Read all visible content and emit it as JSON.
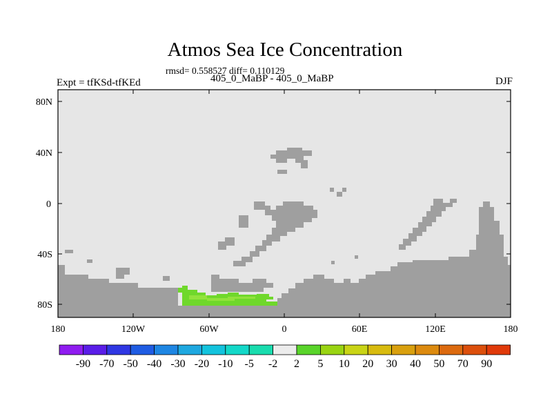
{
  "title": "Atmos Sea Ice Concentration",
  "stats": "rmsd= 0.558527 diff= 0.110129",
  "experiment": "Expt = tfKSd-tfKEd",
  "case_label": "405_0_MaBP - 405_0_MaBP",
  "season": "DJF",
  "map": {
    "lat_ticks": [
      "80N",
      "40N",
      "0",
      "40S",
      "80S"
    ],
    "lon_ticks": [
      "180",
      "120W",
      "60W",
      "0",
      "60E",
      "120E",
      "180"
    ],
    "colors": {
      "ocean": "#e6e6e6",
      "land": "#9f9f9f",
      "anomaly_main": "#6fd82b",
      "anomaly_light": "#92e23c"
    }
  },
  "colorbar": {
    "labels": [
      "-90",
      "-70",
      "-50",
      "-40",
      "-30",
      "-20",
      "-10",
      "-5",
      "-2",
      "2",
      "5",
      "10",
      "20",
      "30",
      "40",
      "50",
      "70",
      "90"
    ],
    "colors": [
      "#8f1cf0",
      "#5a1de8",
      "#2f37e3",
      "#1f5ce3",
      "#1e86e3",
      "#1ea8e0",
      "#13c3dd",
      "#13d8c8",
      "#19dcae",
      "#ececec",
      "#59d42a",
      "#99d412",
      "#c9d416",
      "#d8bb0f",
      "#d9a00e",
      "#dc8a0f",
      "#dc6a0f",
      "#dc4f0c",
      "#e03a0a"
    ]
  }
}
